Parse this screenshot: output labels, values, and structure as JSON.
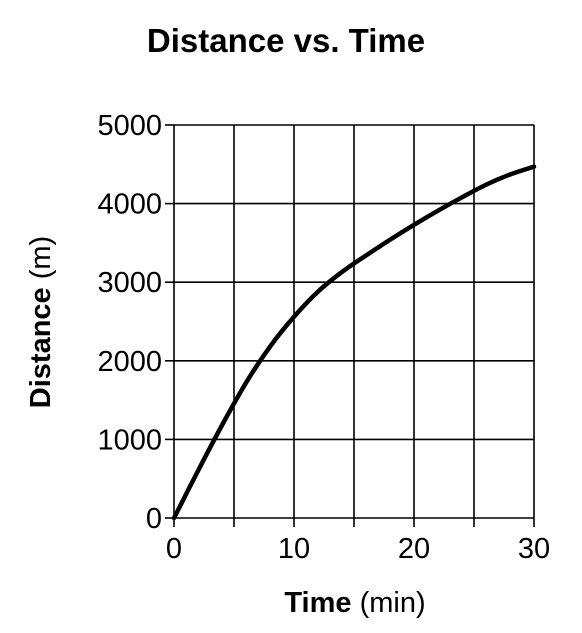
{
  "chart_data": {
    "type": "line",
    "title": "Distance vs. Time",
    "xlabel": {
      "bold": "Time",
      "unit": "(min)"
    },
    "ylabel": {
      "bold": "Distance",
      "unit": "(m)"
    },
    "xlim": [
      0,
      30
    ],
    "ylim": [
      0,
      5000
    ],
    "xticks": [
      0,
      10,
      20,
      30
    ],
    "yticks": [
      0,
      1000,
      2000,
      3000,
      4000,
      5000
    ],
    "grid": true,
    "series": [
      {
        "x": [
          0,
          2,
          4,
          6,
          8,
          10,
          12,
          14,
          16,
          18,
          20,
          22,
          24,
          26,
          28,
          30
        ],
        "y": [
          0,
          600,
          1180,
          1720,
          2180,
          2560,
          2880,
          3130,
          3340,
          3540,
          3730,
          3910,
          4080,
          4240,
          4370,
          4470
        ]
      }
    ],
    "colors": {
      "line": "#000000",
      "grid": "#000000"
    }
  }
}
